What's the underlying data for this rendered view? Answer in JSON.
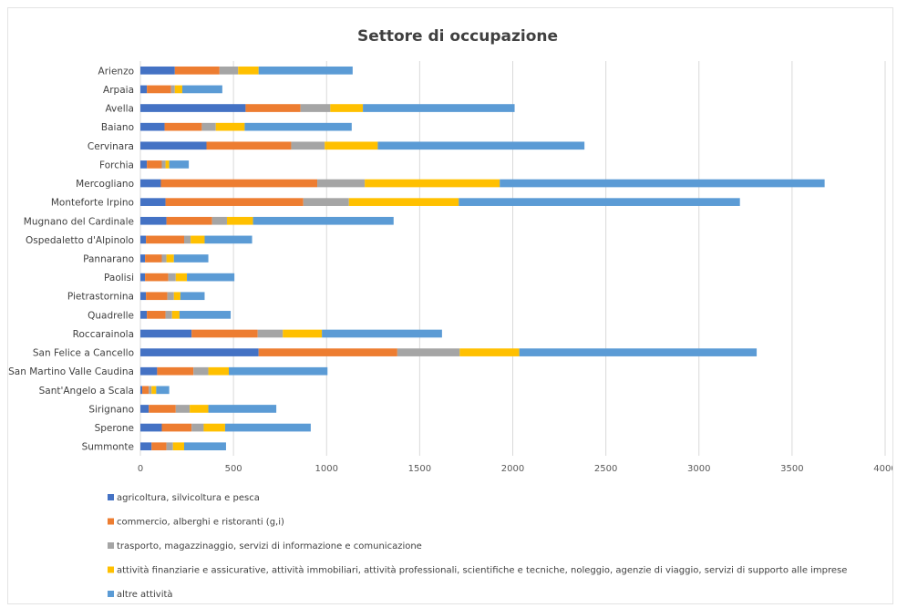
{
  "chart_data": {
    "type": "bar",
    "orientation": "horizontal",
    "stacked": true,
    "title": "Settore di occupazione",
    "xlim": [
      0,
      4000
    ],
    "xticks": [
      0,
      500,
      1000,
      1500,
      2000,
      2500,
      3000,
      3500,
      4000
    ],
    "grid": true,
    "legend_position": "bottom",
    "categories": [
      "Arienzo",
      "Arpaia",
      "Avella",
      "Baiano",
      "Cervinara",
      "Forchia",
      "Mercogliano",
      "Monteforte Irpino",
      "Mugnano del Cardinale",
      "Ospedaletto d'Alpinolo",
      "Pannarano",
      "Paolisi",
      "Pietrastornina",
      "Quadrelle",
      "Roccarainola",
      "San Felice a Cancello",
      "San Martino Valle Caudina",
      "Sant'Angelo a Scala",
      "Sirignano",
      "Sperone",
      "Summonte"
    ],
    "series": [
      {
        "name": "agricoltura, silvicoltura e pesca",
        "color": "#4472c4",
        "values": [
          185,
          35,
          565,
          130,
          355,
          35,
          110,
          135,
          140,
          30,
          25,
          25,
          30,
          35,
          275,
          635,
          90,
          10,
          45,
          115,
          60
        ]
      },
      {
        "name": "commercio, alberghi e ristoranti (g,i)",
        "color": "#ed7d31",
        "values": [
          240,
          130,
          295,
          200,
          455,
          80,
          840,
          740,
          245,
          205,
          90,
          125,
          115,
          100,
          355,
          745,
          195,
          35,
          145,
          160,
          80
        ]
      },
      {
        "name": "trasporto, magazzinaggio, servizi di informazione e comunicazione",
        "color": "#a5a5a5",
        "values": [
          100,
          20,
          160,
          75,
          180,
          20,
          255,
          245,
          80,
          35,
          25,
          40,
          35,
          35,
          135,
          335,
          80,
          15,
          75,
          65,
          35
        ]
      },
      {
        "name": "attività finanziarie e assicurative, attività immobiliari, attività professionali, scientifiche e tecniche, noleggio, agenzie di viaggio, servizi di supporto alle imprese",
        "color": "#ffc000",
        "values": [
          110,
          40,
          175,
          155,
          285,
          20,
          725,
          590,
          140,
          75,
          40,
          60,
          35,
          40,
          210,
          320,
          110,
          25,
          100,
          115,
          60
        ]
      },
      {
        "name": "altre attività",
        "color": "#5b9bd5",
        "values": [
          505,
          215,
          815,
          575,
          1110,
          105,
          1745,
          1510,
          755,
          255,
          185,
          255,
          130,
          275,
          645,
          1275,
          530,
          70,
          365,
          460,
          225
        ]
      }
    ]
  }
}
